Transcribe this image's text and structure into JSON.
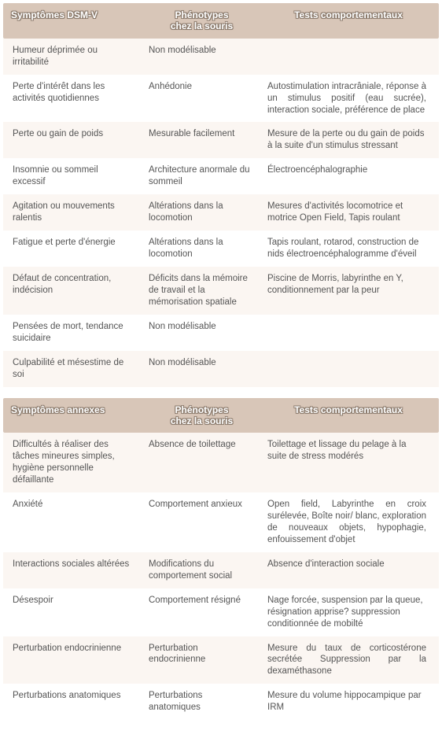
{
  "tables": [
    {
      "headers": [
        "Symptômes DSM-V",
        "Phénotypes chez la souris",
        "Tests comportementaux"
      ],
      "rows": [
        {
          "c1": "Humeur déprimée ou irritabilité",
          "c2": "Non modélisable",
          "c3": "",
          "justify": false
        },
        {
          "c1": "Perte d'intérêt dans les activités quotidiennes",
          "c2": "Anhédonie",
          "c3": "Autostimulation intracrâniale, réponse à un stimulus positif (eau sucrée), interaction sociale, préférence de place",
          "justify": true
        },
        {
          "c1": "Perte ou gain de poids",
          "c2": "Mesurable facilement",
          "c3": "Mesure de la perte ou du gain de poids à la suite d'un stimulus stressant",
          "justify": false
        },
        {
          "c1": "Insomnie ou sommeil excessif",
          "c2": "Architecture anormale du sommeil",
          "c3": "Électroencéphalographie",
          "justify": false
        },
        {
          "c1": "Agitation ou mouvements ralentis",
          "c2": "Altérations dans la locomotion",
          "c3": "Mesures d'activités locomotrice et motrice Open Field, Tapis roulant",
          "justify": false
        },
        {
          "c1": "Fatigue et perte d'énergie",
          "c2": "Altérations dans la locomotion",
          "c3": "Tapis roulant, rotarod, construction de nids électroencéphalogramme d'éveil",
          "justify": false
        },
        {
          "c1": "Défaut de concentration, indécision",
          "c2": "Déficits dans la mémoire de travail et la mémorisation spatiale",
          "c3": "Piscine de Morris, labyrinthe en Y, conditionnement par la peur",
          "justify": false
        },
        {
          "c1": "Pensées de mort, tendance suicidaire",
          "c2": "Non modélisable",
          "c3": "",
          "justify": false
        },
        {
          "c1": "Culpabilité et mésestime de soi",
          "c2": "Non modélisable",
          "c3": "",
          "justify": false
        }
      ]
    },
    {
      "headers": [
        "Symptômes annexes",
        "Phénotypes chez la souris",
        "Tests comportementaux"
      ],
      "rows": [
        {
          "c1": "Difficultés à réaliser des tâches mineures simples, hygiène personnelle défaillante",
          "c2": "Absence de toilettage",
          "c3": "Toilettage et lissage du pelage à la suite de stress modérés",
          "justify": false
        },
        {
          "c1": "Anxiété",
          "c2": "Comportement anxieux",
          "c3": "Open field, Labyrinthe en croix surélevée, Boîte noir/ blanc, exploration de nouveaux objets, hypophagie, enfouissement d'objet",
          "justify": true
        },
        {
          "c1": "Interactions sociales altérées",
          "c2": "Modifications du comportement social",
          "c3": "Absence d'interaction sociale",
          "justify": false
        },
        {
          "c1": "Désespoir",
          "c2": "Comportement résigné",
          "c3": "Nage forcée, suspension par la queue, résignation apprise? suppression conditionnée de mobilté",
          "justify": false
        },
        {
          "c1": "Perturbation endocrinienne",
          "c2": "Perturbation endocrinienne",
          "c3": "Mesure du taux de corticostérone secrétée Suppression par la dexaméthasone",
          "justify": true
        },
        {
          "c1": "Perturbations anatomiques",
          "c2": "Perturbations anatomiques",
          "c3": "Mesure du volume hippocampique par IRM",
          "justify": false
        }
      ]
    }
  ]
}
